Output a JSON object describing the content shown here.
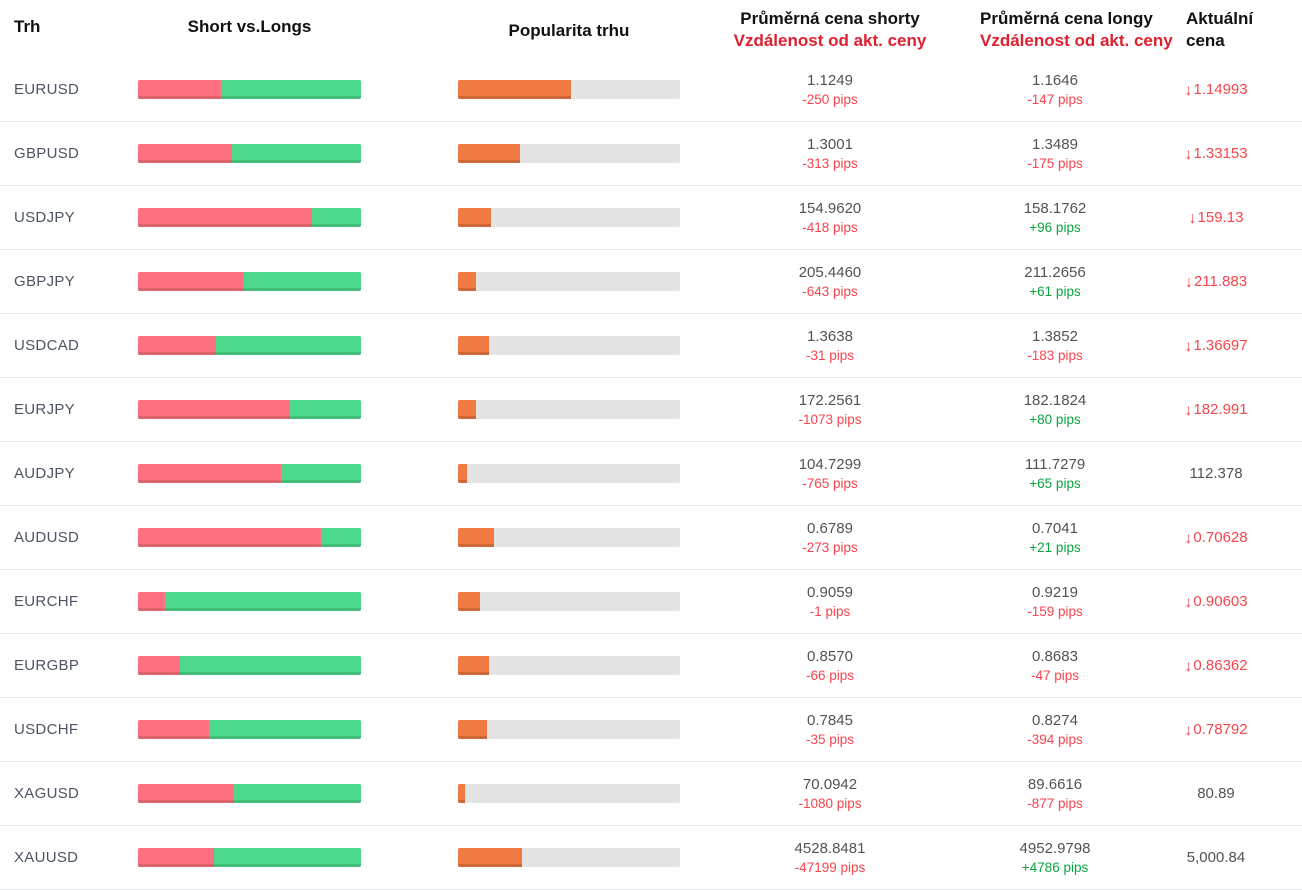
{
  "header": {
    "market": "Trh",
    "short_vs_longs": "Short vs.Longs",
    "popularity": "Popularita trhu",
    "avg_short_line1": "Průměrná cena shorty",
    "avg_long_line1": "Průměrná cena longy",
    "distance_line2": "Vzdálenost od akt. ceny",
    "current_line1": "Aktuální",
    "current_line2": "cena"
  },
  "icons": {
    "down_arrow": "↓"
  },
  "colors": {
    "bar_short_red": "#fc7080",
    "bar_long_green": "#4cd98d",
    "bar_popularity_orange": "#ef7a42",
    "bar_track_gray": "#e4e4e4",
    "header_red": "#e01f2f",
    "negative_red": "#f7444d",
    "positive_green": "#0aa53f",
    "price_gray": "#515257"
  },
  "rows": [
    {
      "market": "EURUSD",
      "short_pct": 37,
      "popularity_pct": 51,
      "avg_short_price": "1.1249",
      "avg_short_distance": "-250 pips",
      "avg_short_trend": "negative",
      "avg_long_price": "1.1646",
      "avg_long_distance": "-147 pips",
      "avg_long_trend": "negative",
      "current_price": "1.14993",
      "current_arrow": "down"
    },
    {
      "market": "GBPUSD",
      "short_pct": 42,
      "popularity_pct": 28,
      "avg_short_price": "1.3001",
      "avg_short_distance": "-313 pips",
      "avg_short_trend": "negative",
      "avg_long_price": "1.3489",
      "avg_long_distance": "-175 pips",
      "avg_long_trend": "negative",
      "current_price": "1.33153",
      "current_arrow": "down"
    },
    {
      "market": "USDJPY",
      "short_pct": 78,
      "popularity_pct": 15,
      "avg_short_price": "154.9620",
      "avg_short_distance": "-418 pips",
      "avg_short_trend": "negative",
      "avg_long_price": "158.1762",
      "avg_long_distance": "+96 pips",
      "avg_long_trend": "positive",
      "current_price": "159.13",
      "current_arrow": "down"
    },
    {
      "market": "GBPJPY",
      "short_pct": 47,
      "popularity_pct": 8,
      "avg_short_price": "205.4460",
      "avg_short_distance": "-643 pips",
      "avg_short_trend": "negative",
      "avg_long_price": "211.2656",
      "avg_long_distance": "+61 pips",
      "avg_long_trend": "positive",
      "current_price": "211.883",
      "current_arrow": "down"
    },
    {
      "market": "USDCAD",
      "short_pct": 35,
      "popularity_pct": 14,
      "avg_short_price": "1.3638",
      "avg_short_distance": "-31 pips",
      "avg_short_trend": "negative",
      "avg_long_price": "1.3852",
      "avg_long_distance": "-183 pips",
      "avg_long_trend": "negative",
      "current_price": "1.36697",
      "current_arrow": "down"
    },
    {
      "market": "EURJPY",
      "short_pct": 68,
      "popularity_pct": 8,
      "avg_short_price": "172.2561",
      "avg_short_distance": "-1073 pips",
      "avg_short_trend": "negative",
      "avg_long_price": "182.1824",
      "avg_long_distance": "+80 pips",
      "avg_long_trend": "positive",
      "current_price": "182.991",
      "current_arrow": "down"
    },
    {
      "market": "AUDJPY",
      "short_pct": 64,
      "popularity_pct": 4,
      "avg_short_price": "104.7299",
      "avg_short_distance": "-765 pips",
      "avg_short_trend": "negative",
      "avg_long_price": "111.7279",
      "avg_long_distance": "+65 pips",
      "avg_long_trend": "positive",
      "current_price": "112.378",
      "current_arrow": "none"
    },
    {
      "market": "AUDUSD",
      "short_pct": 82,
      "popularity_pct": 16,
      "avg_short_price": "0.6789",
      "avg_short_distance": "-273 pips",
      "avg_short_trend": "negative",
      "avg_long_price": "0.7041",
      "avg_long_distance": "+21 pips",
      "avg_long_trend": "positive",
      "current_price": "0.70628",
      "current_arrow": "down"
    },
    {
      "market": "EURCHF",
      "short_pct": 12,
      "popularity_pct": 10,
      "avg_short_price": "0.9059",
      "avg_short_distance": "-1 pips",
      "avg_short_trend": "negative",
      "avg_long_price": "0.9219",
      "avg_long_distance": "-159 pips",
      "avg_long_trend": "negative",
      "current_price": "0.90603",
      "current_arrow": "down"
    },
    {
      "market": "EURGBP",
      "short_pct": 19,
      "popularity_pct": 14,
      "avg_short_price": "0.8570",
      "avg_short_distance": "-66 pips",
      "avg_short_trend": "negative",
      "avg_long_price": "0.8683",
      "avg_long_distance": "-47 pips",
      "avg_long_trend": "negative",
      "current_price": "0.86362",
      "current_arrow": "down"
    },
    {
      "market": "USDCHF",
      "short_pct": 32,
      "popularity_pct": 13,
      "avg_short_price": "0.7845",
      "avg_short_distance": "-35 pips",
      "avg_short_trend": "negative",
      "avg_long_price": "0.8274",
      "avg_long_distance": "-394 pips",
      "avg_long_trend": "negative",
      "current_price": "0.78792",
      "current_arrow": "down"
    },
    {
      "market": "XAGUSD",
      "short_pct": 43,
      "popularity_pct": 3,
      "avg_short_price": "70.0942",
      "avg_short_distance": "-1080 pips",
      "avg_short_trend": "negative",
      "avg_long_price": "89.6616",
      "avg_long_distance": "-877 pips",
      "avg_long_trend": "negative",
      "current_price": "80.89",
      "current_arrow": "none"
    },
    {
      "market": "XAUUSD",
      "short_pct": 34,
      "popularity_pct": 29,
      "avg_short_price": "4528.8481",
      "avg_short_distance": "-47199 pips",
      "avg_short_trend": "negative",
      "avg_long_price": "4952.9798",
      "avg_long_distance": "+4786 pips",
      "avg_long_trend": "positive",
      "current_price": "5,000.84",
      "current_arrow": "none"
    }
  ]
}
